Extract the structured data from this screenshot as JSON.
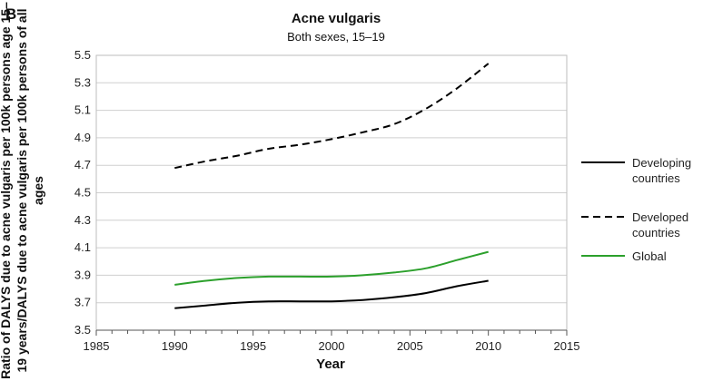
{
  "panel_label": "B",
  "chart_data": {
    "type": "line",
    "title": "Acne vulgaris",
    "subtitle": "Both sexes, 15–19",
    "xlabel": "Year",
    "ylabel": "Ratio of DALYS due to acne vulgaris per 100k persons age 15–19 years/DALYS due to acne vulgaris per 100k persons of all ages",
    "xlim": [
      1985,
      2015
    ],
    "ylim": [
      3.5,
      5.5
    ],
    "x_ticks": [
      1985,
      1990,
      1995,
      2000,
      2005,
      2010,
      2015
    ],
    "y_ticks": [
      "3.5",
      "3.7",
      "3.9",
      "4.1",
      "4.3",
      "4.5",
      "4.7",
      "4.9",
      "5.1",
      "5.3",
      "5.5"
    ],
    "grid": "horizontal",
    "legend_position": "right",
    "series": [
      {
        "name": "Developing countries",
        "color": "#000000",
        "style": "solid",
        "x": [
          1990,
          1992,
          1994,
          1996,
          1998,
          2000,
          2002,
          2004,
          2006,
          2008,
          2010
        ],
        "y": [
          3.66,
          3.68,
          3.7,
          3.71,
          3.71,
          3.71,
          3.72,
          3.74,
          3.77,
          3.82,
          3.86
        ]
      },
      {
        "name": "Developed countries",
        "color": "#000000",
        "style": "dashed",
        "x": [
          1990,
          1992,
          1994,
          1996,
          1998,
          2000,
          2002,
          2004,
          2006,
          2008,
          2010
        ],
        "y": [
          4.68,
          4.73,
          4.77,
          4.82,
          4.85,
          4.89,
          4.94,
          5.0,
          5.11,
          5.26,
          5.44
        ]
      },
      {
        "name": "Global",
        "color": "#2ca02c",
        "style": "solid",
        "x": [
          1990,
          1992,
          1994,
          1996,
          1998,
          2000,
          2002,
          2004,
          2006,
          2008,
          2010
        ],
        "y": [
          3.83,
          3.86,
          3.88,
          3.89,
          3.89,
          3.89,
          3.9,
          3.92,
          3.95,
          4.01,
          4.07
        ]
      }
    ],
    "legend": [
      {
        "line1": "Developing",
        "line2": "countries"
      },
      {
        "line1": "Developed",
        "line2": "countries"
      },
      {
        "line1": "Global",
        "line2": ""
      }
    ]
  }
}
